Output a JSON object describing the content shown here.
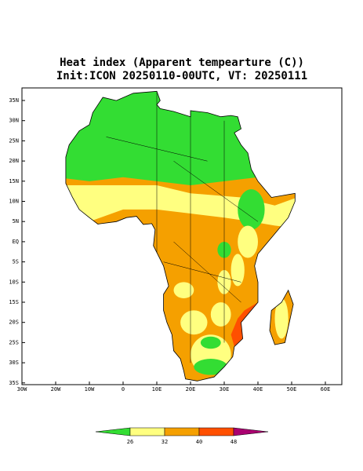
{
  "header": {
    "title": "Heat index (Apparent tempearture (C))",
    "subtitle": "Init:ICON 20250110-00UTC, VT: 20250111"
  },
  "lat_labels": [
    "35N",
    "30N",
    "25N",
    "20N",
    "15N",
    "10N",
    "5N",
    "EQ",
    "5S",
    "10S",
    "15S",
    "20S",
    "25S",
    "30S",
    "35S"
  ],
  "lon_labels": [
    "30W",
    "20W",
    "10W",
    "0",
    "10E",
    "20E",
    "30E",
    "40E",
    "50E",
    "60E"
  ],
  "colorbar": {
    "levels": [
      26,
      32,
      40,
      48
    ],
    "colors": [
      "#33dd33",
      "#ffff80",
      "#f5a000",
      "#ff5000",
      "#aa0070"
    ]
  }
}
